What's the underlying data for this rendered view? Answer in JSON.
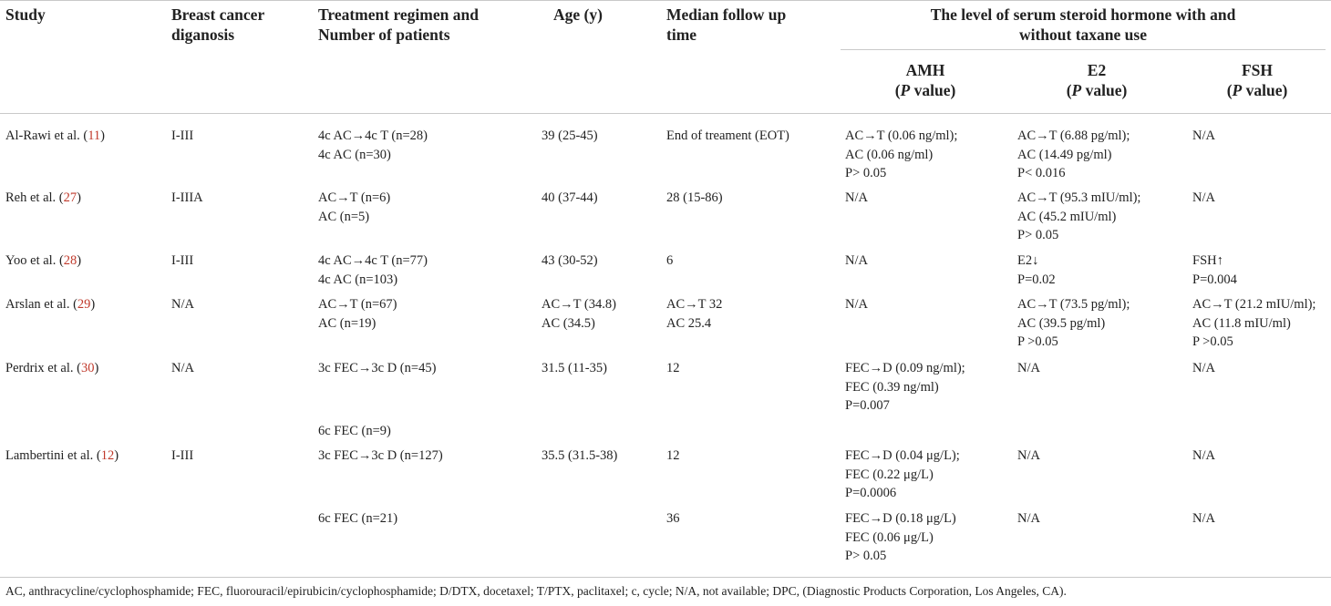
{
  "headers": {
    "study": "Study",
    "diagnosis": "Breast cancer\ndiganosis",
    "regimen": "Treatment regimen and\nNumber of patients",
    "age": "Age (y)",
    "followup": "Median follow up\ntime",
    "group": "The level of serum steroid hormone with and\nwithout taxane use",
    "amh_name": "AMH",
    "e2_name": "E2",
    "fsh_name": "FSH",
    "p_letter": "P",
    "p_suffix": " value)",
    "p_open": "("
  },
  "rows": [
    {
      "study": "Al-Rawi et al. (",
      "ref": "11",
      "close": ")",
      "diagnosis": "I-III",
      "regimen": "4c AC→4c T (n=28)\n4c AC (n=30)",
      "age": "39 (25-45)",
      "followup": "End of treament (EOT)",
      "amh": "AC→T (0.06 ng/ml);\nAC (0.06 ng/ml)\nP> 0.05",
      "e2": "AC→T (6.88 pg/ml);\nAC (14.49 pg/ml)\nP< 0.016",
      "fsh": "N/A"
    },
    {
      "study": "Reh et al. (",
      "ref": "27",
      "close": ")",
      "diagnosis": "I-IIIA",
      "regimen": "AC→T (n=6)\nAC (n=5)",
      "age": "40 (37-44)",
      "followup": "28 (15-86)",
      "amh": "N/A",
      "e2": "AC→T (95.3 mIU/ml);\nAC (45.2 mIU/ml)\nP> 0.05",
      "fsh": "N/A"
    },
    {
      "study": "Yoo et al. (",
      "ref": "28",
      "close": ")",
      "diagnosis": "I-III",
      "regimen": "4c AC→4c T (n=77)\n4c AC (n=103)",
      "age": "43 (30-52)",
      "followup": "6",
      "amh": "N/A",
      "e2": "E2↓\nP=0.02",
      "fsh": "FSH↑\nP=0.004"
    },
    {
      "study": "Arslan et al. (",
      "ref": "29",
      "close": ")",
      "diagnosis": "N/A",
      "regimen": "AC→T (n=67)\nAC (n=19)",
      "age": "AC→T (34.8)\nAC (34.5)",
      "followup": "AC→T 32\nAC 25.4",
      "amh": "N/A",
      "e2": "AC→T (73.5 pg/ml);\nAC (39.5 pg/ml)\nP >0.05",
      "fsh": "AC→T (21.2 mIU/ml);\nAC (11.8 mIU/ml)\nP >0.05"
    },
    {
      "study": "Perdrix et al. (",
      "ref": "30",
      "close": ")",
      "diagnosis": "N/A",
      "regimen": "3c FEC→3c D (n=45)",
      "regimen2": "6c FEC (n=9)",
      "age": "31.5 (11-35)",
      "followup": "12",
      "amh": "FEC→D (0.09 ng/ml);\nFEC (0.39 ng/ml)\nP=0.007",
      "e2": "N/A",
      "fsh": "N/A"
    },
    {
      "study": "Lambertini et al. (",
      "ref": "12",
      "close": ")",
      "diagnosis": "I-III",
      "regimen": "3c FEC→3c D (n=127)",
      "age": "35.5 (31.5-38)",
      "followup": "12",
      "amh": "FEC→D (0.04 μg/L);\nFEC (0.22 μg/L)\nP=0.0006",
      "e2": "N/A",
      "fsh": "N/A",
      "sub": {
        "regimen": "6c FEC (n=21)",
        "followup": "36",
        "amh": "FEC→D (0.18 μg/L)\nFEC (0.06 μg/L)\nP> 0.05",
        "e2": "N/A",
        "fsh": "N/A"
      }
    }
  ],
  "footnote": "AC, anthracycline/cyclophosphamide; FEC, fluorouracil/epirubicin/cyclophosphamide; D/DTX, docetaxel; T/PTX, paclitaxel; c, cycle; N/A, not available; DPC, (Diagnostic Products Corporation, Los Angeles, CA)."
}
